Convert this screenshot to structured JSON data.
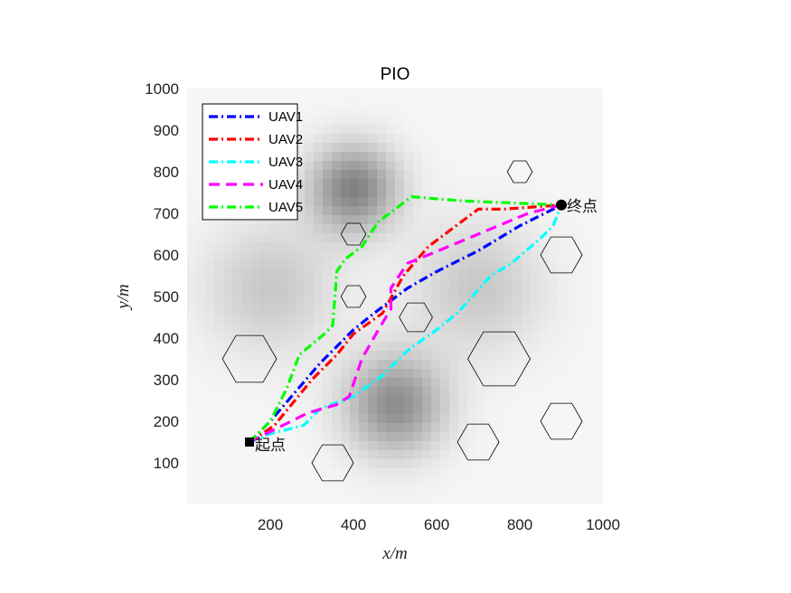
{
  "chart_data": {
    "type": "line",
    "title": "PIO",
    "xlabel": "x/m",
    "ylabel": "y/m",
    "xlim": [
      0,
      1000
    ],
    "ylim": [
      0,
      1000
    ],
    "xticks": [
      200,
      400,
      600,
      800,
      1000
    ],
    "yticks": [
      100,
      200,
      300,
      400,
      500,
      600,
      700,
      800,
      900,
      1000
    ],
    "legend_position": "top-left",
    "background": "grayscale threat field",
    "threat_centers": [
      {
        "x": 400,
        "y": 760,
        "strength": 0.55,
        "sigma": 75
      },
      {
        "x": 500,
        "y": 240,
        "strength": 0.5,
        "sigma": 85
      },
      {
        "x": 200,
        "y": 520,
        "strength": 0.22,
        "sigma": 110
      },
      {
        "x": 700,
        "y": 520,
        "strength": 0.22,
        "sigma": 110
      }
    ],
    "obstacles": [
      {
        "x": 400,
        "y": 650,
        "r": 30
      },
      {
        "x": 400,
        "y": 500,
        "r": 30
      },
      {
        "x": 150,
        "y": 350,
        "r": 65
      },
      {
        "x": 550,
        "y": 450,
        "r": 40
      },
      {
        "x": 750,
        "y": 350,
        "r": 75
      },
      {
        "x": 800,
        "y": 800,
        "r": 30
      },
      {
        "x": 900,
        "y": 600,
        "r": 50
      },
      {
        "x": 900,
        "y": 200,
        "r": 50
      },
      {
        "x": 700,
        "y": 150,
        "r": 50
      },
      {
        "x": 350,
        "y": 100,
        "r": 50
      }
    ],
    "start": {
      "x": 150,
      "y": 150,
      "label": "起点"
    },
    "end": {
      "x": 900,
      "y": 720,
      "label": "终点"
    },
    "series": [
      {
        "name": "UAV1",
        "color": "#0000ff",
        "dash": "dashdot",
        "x": [
          150,
          200,
          260,
          320,
          400,
          450,
          530,
          600,
          700,
          800,
          900
        ],
        "y": [
          150,
          200,
          270,
          340,
          420,
          460,
          520,
          560,
          610,
          670,
          720
        ]
      },
      {
        "name": "UAV2",
        "color": "#ff0000",
        "dash": "dashdot",
        "x": [
          150,
          210,
          300,
          360,
          400,
          470,
          520,
          580,
          620,
          700,
          760,
          900
        ],
        "y": [
          150,
          190,
          300,
          360,
          410,
          460,
          550,
          620,
          650,
          710,
          710,
          720
        ]
      },
      {
        "name": "UAV3",
        "color": "#00ffff",
        "dash": "dashdot",
        "x": [
          150,
          200,
          280,
          320,
          400,
          470,
          530,
          600,
          650,
          730,
          780,
          850,
          880,
          900
        ],
        "y": [
          150,
          170,
          190,
          230,
          260,
          310,
          370,
          420,
          460,
          550,
          580,
          640,
          670,
          720
        ]
      },
      {
        "name": "UAV4",
        "color": "#ff00ff",
        "dash": "dash",
        "x": [
          150,
          210,
          290,
          360,
          390,
          420,
          460,
          490,
          490,
          530,
          580,
          700,
          820,
          900
        ],
        "y": [
          150,
          180,
          220,
          240,
          260,
          350,
          420,
          470,
          520,
          580,
          600,
          650,
          700,
          720
        ]
      },
      {
        "name": "UAV5",
        "color": "#00ff00",
        "dash": "dashdot",
        "x": [
          150,
          200,
          240,
          270,
          330,
          350,
          360,
          380,
          420,
          460,
          540,
          660,
          900
        ],
        "y": [
          150,
          200,
          280,
          360,
          410,
          430,
          560,
          590,
          620,
          680,
          740,
          730,
          720
        ]
      }
    ]
  }
}
